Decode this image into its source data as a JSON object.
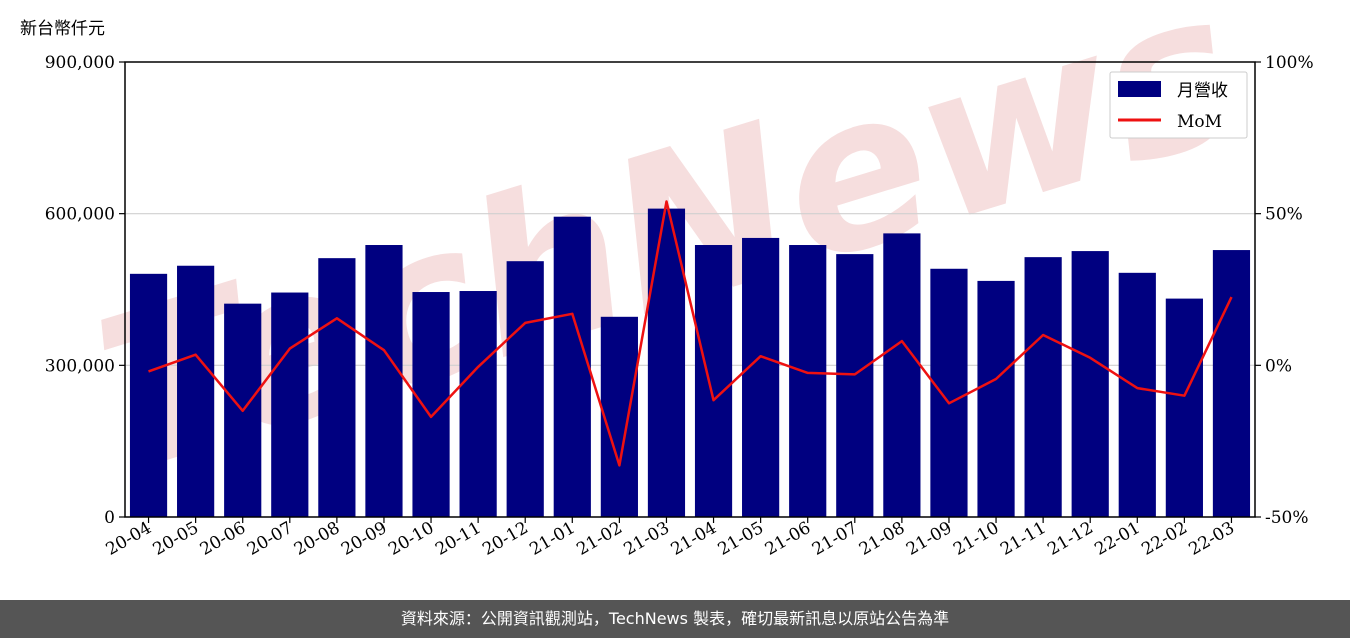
{
  "unit_label": "新台幣仟元",
  "footer": {
    "text": "資料來源：公開資訊觀測站，TechNews 製表，確切最新訊息以原站公告為準"
  },
  "watermark": {
    "text": "TechNews"
  },
  "colors": {
    "bar": "#000080",
    "line": "#ee1111",
    "grid": "#d0d0d0"
  },
  "chart_data": {
    "type": "bar",
    "categories": [
      "20-04",
      "20-05",
      "20-06",
      "20-07",
      "20-08",
      "20-09",
      "20-10",
      "20-11",
      "20-12",
      "21-01",
      "21-02",
      "21-03",
      "21-04",
      "21-05",
      "21-06",
      "21-07",
      "21-08",
      "21-09",
      "21-10",
      "21-11",
      "21-12",
      "22-01",
      "22-02",
      "22-03"
    ],
    "series": [
      {
        "name": "月營收",
        "type": "bar",
        "axis": "left",
        "values": [
          481000,
          497000,
          422000,
          444000,
          512000,
          538000,
          445000,
          447000,
          506000,
          594000,
          396000,
          610000,
          538000,
          552000,
          538000,
          520000,
          561000,
          491000,
          467000,
          514000,
          526000,
          483000,
          432000,
          528000
        ]
      },
      {
        "name": "MoM",
        "type": "line",
        "axis": "right",
        "values": [
          -2,
          3.5,
          -15,
          5.5,
          15.5,
          5,
          -17,
          -0.5,
          14,
          17,
          -33,
          54,
          -11.5,
          3,
          -2.5,
          -3,
          8,
          -12.5,
          -4.5,
          10,
          2.5,
          -7.5,
          -10,
          22.5
        ]
      }
    ],
    "left_axis": {
      "ylim": [
        0,
        900000
      ],
      "ticks": [
        0,
        300000,
        600000,
        900000
      ],
      "tick_labels": [
        "0",
        "300,000",
        "600,000",
        "900,000"
      ]
    },
    "right_axis": {
      "ylim": [
        -50,
        100
      ],
      "ticks": [
        -50,
        0,
        50,
        100
      ],
      "tick_labels": [
        "-50%",
        "0%",
        "50%",
        "100%"
      ]
    },
    "grid": true,
    "legend": "top-right"
  }
}
